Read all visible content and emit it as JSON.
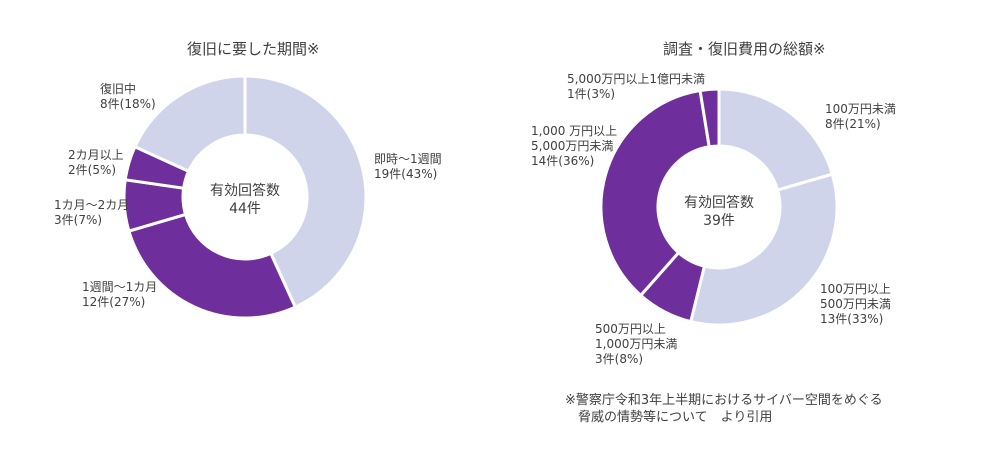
{
  "colors": {
    "light": "#cfd4ea",
    "dark": "#6e2e9c"
  },
  "chart_data": [
    {
      "type": "pie",
      "title": "復旧に要した期間※",
      "center_label": "有効回答数",
      "center_value": "44件",
      "slices": [
        {
          "label": "即時～1週間",
          "value": 19,
          "percent": 43,
          "text": "19件(43%)",
          "color": "light"
        },
        {
          "label": "1週間～1カ月",
          "value": 12,
          "percent": 27,
          "text": "12件(27%)",
          "color": "dark"
        },
        {
          "label": "1カ月～2カ月",
          "value": 3,
          "percent": 7,
          "text": "3件(7%)",
          "color": "dark"
        },
        {
          "label": "2カ月以上",
          "value": 2,
          "percent": 5,
          "text": "2件(5%)",
          "color": "dark"
        },
        {
          "label": "復旧中",
          "value": 8,
          "percent": 18,
          "text": "8件(18%)",
          "color": "light"
        }
      ]
    },
    {
      "type": "pie",
      "title": "調査・復旧費用の総額※",
      "center_label": "有効回答数",
      "center_value": "39件",
      "slices": [
        {
          "label": "100万円未満",
          "value": 8,
          "percent": 21,
          "text": "8件(21%)",
          "color": "light"
        },
        {
          "label": "100万円以上\n500万円未満",
          "value": 13,
          "percent": 33,
          "text": "13件(33%)",
          "color": "light"
        },
        {
          "label": "500万円以上\n1,000万円未満",
          "value": 3,
          "percent": 8,
          "text": "3件(8%)",
          "color": "dark"
        },
        {
          "label": "1,000 万円以上\n5,000万円未満",
          "value": 14,
          "percent": 36,
          "text": "14件(36%)",
          "color": "dark"
        },
        {
          "label": "5,000万円以上1億円未満",
          "value": 1,
          "percent": 3,
          "text": "1件(3%)",
          "color": "dark"
        }
      ]
    }
  ],
  "footnote": "※警察庁令和3年上半期におけるサイバー空間をめぐる\n　脅威の情勢等について　より引用"
}
